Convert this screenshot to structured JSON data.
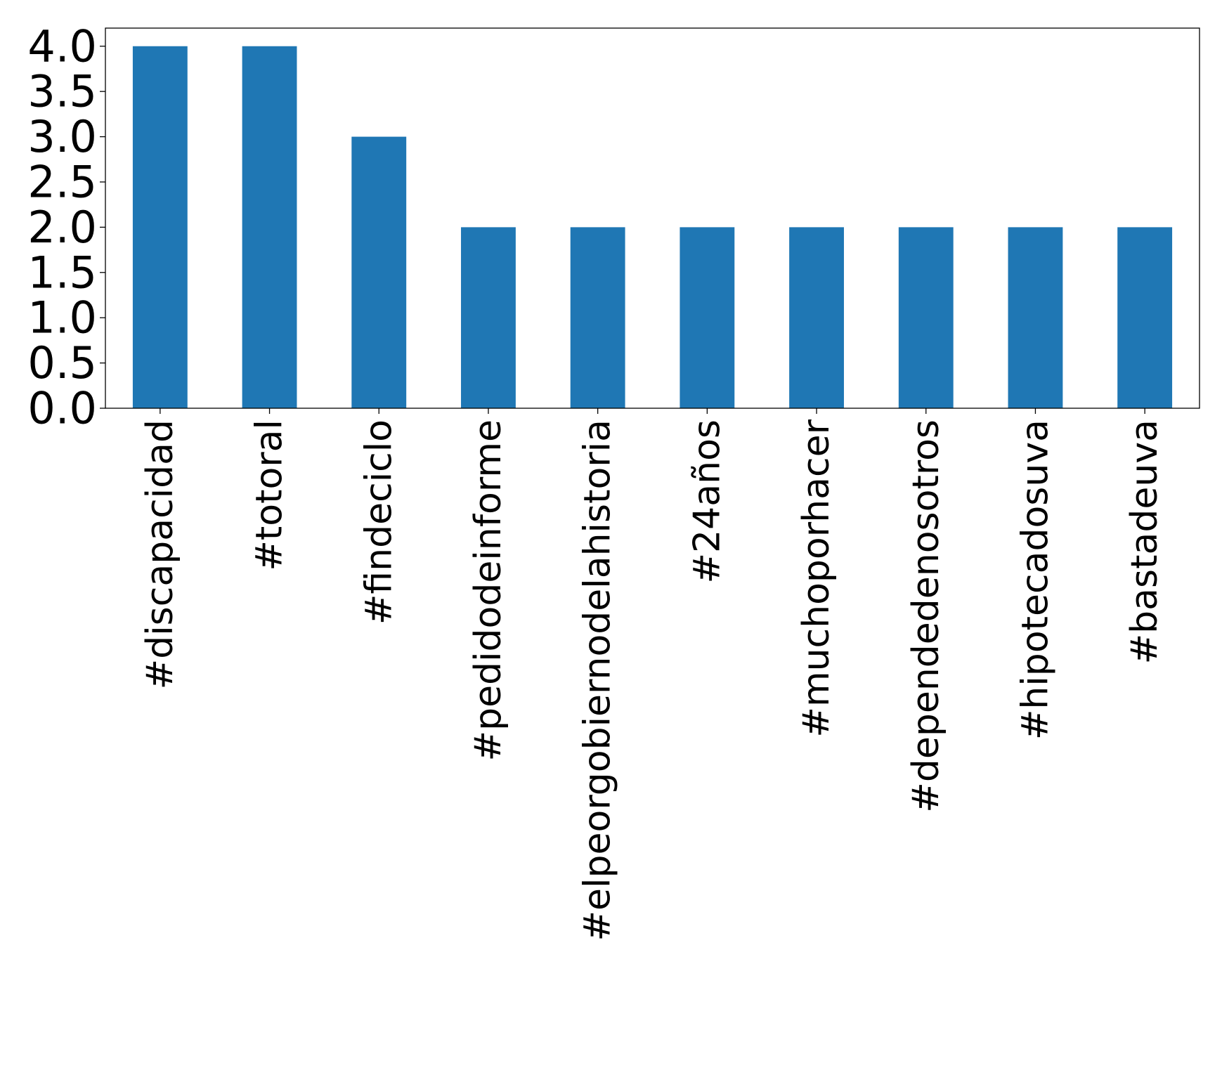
{
  "chart_data": {
    "type": "bar",
    "title": "",
    "xlabel": "",
    "ylabel": "",
    "categories": [
      "#discapacidad",
      "#totoral",
      "#findeciclo",
      "#pedidodeinforme",
      "#elpeorgobiernodelahistoria",
      "#24años",
      "#muchoporhacer",
      "#dependedenosotros",
      "#hipotecadosuva",
      "#bastadeuva"
    ],
    "values": [
      4,
      4,
      3,
      2,
      2,
      2,
      2,
      2,
      2,
      2
    ],
    "ylim": [
      0,
      4.2
    ],
    "yticks": [
      0.0,
      0.5,
      1.0,
      1.5,
      2.0,
      2.5,
      3.0,
      3.5,
      4.0
    ],
    "ytick_labels": [
      "0.0",
      "0.5",
      "1.0",
      "1.5",
      "2.0",
      "2.5",
      "3.0",
      "3.5",
      "4.0"
    ],
    "bar_color": "#1f77b4",
    "grid": false,
    "legend": "none"
  }
}
